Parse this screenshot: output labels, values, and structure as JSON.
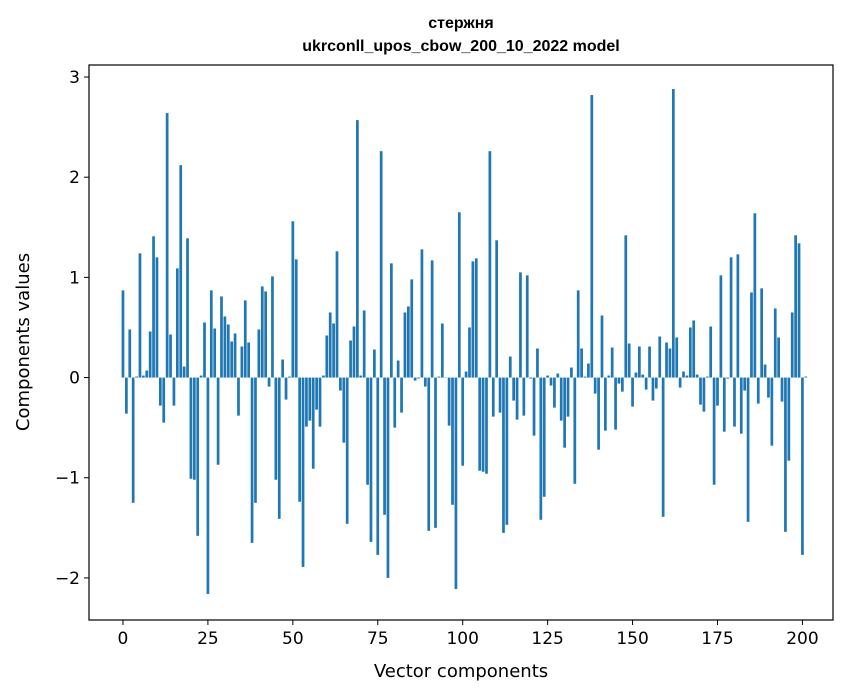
{
  "chart_data": {
    "type": "bar",
    "title_lines": [
      "стержня",
      "ukrconll_upos_cbow_200_10_2022 model"
    ],
    "xlabel": "Vector components",
    "ylabel": "Components values",
    "xlim": [
      -10,
      209
    ],
    "ylim": [
      -2.42,
      3.12
    ],
    "xticks": [
      0,
      25,
      50,
      75,
      100,
      125,
      150,
      175,
      200
    ],
    "xtick_labels": [
      "0",
      "25",
      "50",
      "75",
      "100",
      "125",
      "150",
      "175",
      "200"
    ],
    "yticks": [
      -2,
      -1,
      0,
      1,
      2,
      3
    ],
    "ytick_labels": [
      "−2",
      "−1",
      "0",
      "1",
      "2",
      "3"
    ],
    "grid": false,
    "bar_color": "#1f77b4",
    "values": [
      0.87,
      -0.36,
      0.48,
      -1.25,
      0.01,
      1.24,
      0.02,
      0.07,
      0.46,
      1.41,
      1.2,
      -0.28,
      -0.45,
      2.64,
      0.43,
      -0.28,
      1.09,
      2.12,
      0.11,
      1.39,
      -1.01,
      -1.02,
      -1.58,
      0.02,
      0.55,
      -2.16,
      0.87,
      0.49,
      -0.87,
      0.81,
      0.61,
      0.53,
      0.36,
      0.44,
      -0.38,
      0.31,
      0.77,
      0.35,
      -1.65,
      -1.25,
      0.48,
      0.91,
      0.86,
      -0.09,
      1.01,
      -1.02,
      -1.41,
      0.18,
      -0.22,
      0.01,
      1.56,
      1.18,
      -1.24,
      -1.89,
      -0.49,
      -0.43,
      -0.91,
      -0.32,
      -0.49,
      0.02,
      0.42,
      0.65,
      0.54,
      1.26,
      -0.13,
      -0.65,
      -1.46,
      0.37,
      0.51,
      2.57,
      0.02,
      0.67,
      -1.07,
      -1.64,
      0.28,
      -1.77,
      2.26,
      -1.37,
      -2.0,
      1.14,
      -0.5,
      0.17,
      -0.35,
      0.65,
      0.71,
      0.98,
      -0.03,
      -0.01,
      1.28,
      -0.09,
      -1.53,
      1.17,
      -1.5,
      0.01,
      0.54,
      0.0,
      -0.48,
      -1.27,
      -2.11,
      1.65,
      -0.88,
      0.06,
      0.5,
      1.16,
      1.19,
      -0.93,
      -0.94,
      -0.96,
      2.26,
      -0.39,
      1.37,
      -0.35,
      -1.55,
      -1.47,
      0.21,
      -0.23,
      -0.42,
      1.05,
      -0.38,
      1.02,
      -0.01,
      -0.58,
      0.29,
      -1.42,
      -1.19,
      0.02,
      -0.08,
      -0.3,
      0.04,
      -0.43,
      -0.7,
      -0.39,
      0.1,
      -1.06,
      0.87,
      0.29,
      0.01,
      0.14,
      2.82,
      -0.16,
      -0.72,
      0.62,
      -0.53,
      0.02,
      0.3,
      -0.52,
      -0.06,
      -0.14,
      1.42,
      0.34,
      -0.29,
      0.05,
      0.31,
      0.03,
      -0.12,
      0.31,
      -0.23,
      -0.11,
      0.41,
      -1.39,
      0.35,
      0.29,
      2.88,
      0.4,
      -0.1,
      0.06,
      0.02,
      0.5,
      0.57,
      0.03,
      -0.27,
      -0.34,
      0.01,
      0.51,
      -1.07,
      -0.28,
      1.02,
      -0.54,
      -0.01,
      1.2,
      -0.49,
      1.23,
      -0.56,
      -0.13,
      -1.44,
      0.85,
      1.64,
      -0.26,
      0.89,
      0.13,
      -0.2,
      -0.68,
      0.69,
      0.4,
      -0.24,
      -1.54,
      -0.83,
      0.65,
      1.42,
      1.34,
      -1.77,
      0.01
    ]
  }
}
